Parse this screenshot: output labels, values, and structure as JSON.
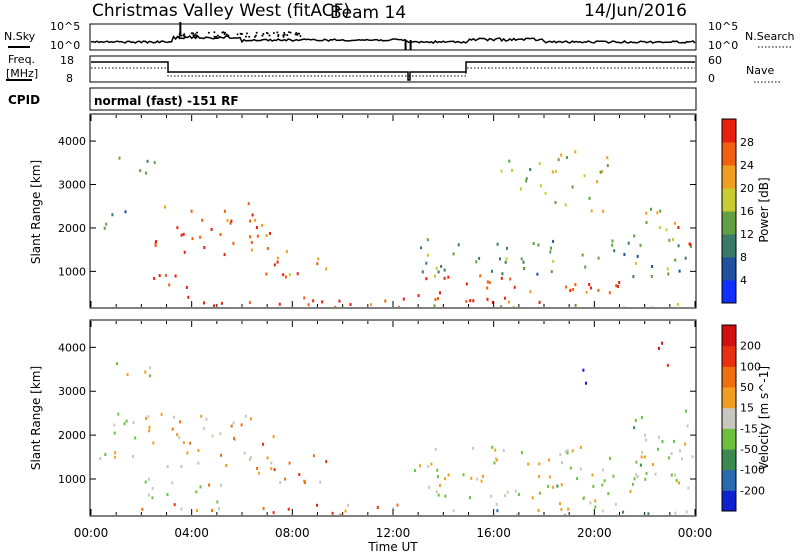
{
  "header": {
    "station": "Christmas Valley West (fitACF)",
    "beam": "Beam 14",
    "date": "14/Jun/2016"
  },
  "noise_panel": {
    "left_label": "N.Sky",
    "left_ticks": [
      "10^5",
      "10^0"
    ],
    "right_label": "N.Search",
    "right_ticks": [
      "10^5",
      "10^0"
    ]
  },
  "freq_panel": {
    "left_label_line1": "Freq.",
    "left_label_line2": "[MHz]",
    "left_ticks": [
      "18",
      "8"
    ],
    "right_label": "Nave",
    "right_ticks": [
      "60",
      "0"
    ]
  },
  "cpid_panel": {
    "label": "CPID",
    "text": "normal (fast) -151 RF"
  },
  "chart_data": [
    {
      "type": "heatmap",
      "title": "",
      "xlabel": "Time UT",
      "ylabel": "Slant Range [km]",
      "x_ticks": [
        "00:00",
        "04:00",
        "08:00",
        "12:00",
        "16:00",
        "20:00",
        "00:00"
      ],
      "y_ticks": [
        "1000",
        "2000",
        "3000",
        "4000"
      ],
      "xlim_hours": [
        0,
        24
      ],
      "ylim_km": [
        180,
        4600
      ],
      "colorbar_label": "Power [dB]",
      "colorbar_ticks": [
        "4",
        "8",
        "12",
        "16",
        "20",
        "24",
        "28"
      ],
      "colorbar_colors": [
        "#1030ff",
        "#2050a0",
        "#3a7a6a",
        "#60a040",
        "#c8cc30",
        "#f0a020",
        "#f06010",
        "#e82010"
      ],
      "blobs": [
        {
          "t0": 0.8,
          "t1": 2.5,
          "r0": 3200,
          "r1": 3700,
          "level": 0.35
        },
        {
          "t0": 0.2,
          "t1": 1.5,
          "r0": 1900,
          "r1": 2500,
          "level": 0.3
        },
        {
          "t0": 2.5,
          "t1": 7.2,
          "r0": 1300,
          "r1": 2600,
          "level": 0.85
        },
        {
          "t0": 2.2,
          "t1": 4.5,
          "r0": 600,
          "r1": 1100,
          "level": 0.9
        },
        {
          "t0": 6.5,
          "t1": 10.0,
          "r0": 900,
          "r1": 1500,
          "level": 0.75
        },
        {
          "t0": 0.2,
          "t1": 12.5,
          "r0": 200,
          "r1": 450,
          "level": 0.9
        },
        {
          "t0": 12.8,
          "t1": 17.0,
          "r0": 300,
          "r1": 1000,
          "level": 0.9
        },
        {
          "t0": 15.0,
          "t1": 21.0,
          "r0": 300,
          "r1": 900,
          "level": 0.85
        },
        {
          "t0": 13.0,
          "t1": 24.0,
          "r0": 900,
          "r1": 1800,
          "level": 0.4
        },
        {
          "t0": 21.5,
          "t1": 23.2,
          "r0": 1500,
          "r1": 2600,
          "level": 0.55
        },
        {
          "t0": 22.8,
          "t1": 24.0,
          "r0": 1600,
          "r1": 2100,
          "level": 0.95
        },
        {
          "t0": 18.0,
          "t1": 20.5,
          "r0": 2400,
          "r1": 3800,
          "level": 0.55
        },
        {
          "t0": 16.0,
          "t1": 18.0,
          "r0": 2800,
          "r1": 3600,
          "level": 0.45
        },
        {
          "t0": 12.6,
          "t1": 24.0,
          "r0": 180,
          "r1": 300,
          "level": 0.5
        }
      ]
    },
    {
      "type": "heatmap",
      "title": "",
      "xlabel": "Time UT",
      "ylabel": "Slant Range [km]",
      "x_ticks": [
        "00:00",
        "04:00",
        "08:00",
        "12:00",
        "16:00",
        "20:00",
        "00:00"
      ],
      "y_ticks": [
        "1000",
        "2000",
        "3000",
        "4000"
      ],
      "xlim_hours": [
        0,
        24
      ],
      "ylim_km": [
        180,
        4600
      ],
      "colorbar_label": "Velocity [m s^-1]",
      "colorbar_ticks": [
        "200",
        "100",
        "50",
        "15",
        "-15",
        "-50",
        "-100",
        "-200"
      ],
      "colorbar_colors": [
        "#1020d0",
        "#2a6ab0",
        "#3a8a50",
        "#70c040",
        "#c8c8c0",
        "#f0a020",
        "#f07010",
        "#e83010",
        "#d01010"
      ],
      "blobs": [
        {
          "t0": 0.8,
          "t1": 2.5,
          "r0": 3200,
          "r1": 3700,
          "level": 0.5
        },
        {
          "t0": 0.3,
          "t1": 3.0,
          "r0": 1500,
          "r1": 2700,
          "level": 0.5
        },
        {
          "t0": 3.0,
          "t1": 7.5,
          "r0": 1300,
          "r1": 2600,
          "level": 0.62
        },
        {
          "t0": 6.5,
          "t1": 9.5,
          "r0": 800,
          "r1": 1600,
          "level": 0.65
        },
        {
          "t0": 2.0,
          "t1": 5.5,
          "r0": 500,
          "r1": 1100,
          "level": 0.55
        },
        {
          "t0": 0.2,
          "t1": 12.5,
          "r0": 200,
          "r1": 450,
          "level": 0.68
        },
        {
          "t0": 12.8,
          "t1": 24.0,
          "r0": 600,
          "r1": 1800,
          "level": 0.5
        },
        {
          "t0": 15.0,
          "t1": 21.0,
          "r0": 300,
          "r1": 900,
          "level": 0.5
        },
        {
          "t0": 19.5,
          "t1": 20.2,
          "r0": 3200,
          "r1": 3600,
          "level": 0.02
        },
        {
          "t0": 22.5,
          "t1": 23.2,
          "r0": 3500,
          "r1": 4200,
          "level": 0.98
        },
        {
          "t0": 21.5,
          "t1": 24.0,
          "r0": 1500,
          "r1": 2600,
          "level": 0.5
        },
        {
          "t0": 12.6,
          "t1": 24.0,
          "r0": 180,
          "r1": 320,
          "level": 0.35
        }
      ]
    }
  ]
}
